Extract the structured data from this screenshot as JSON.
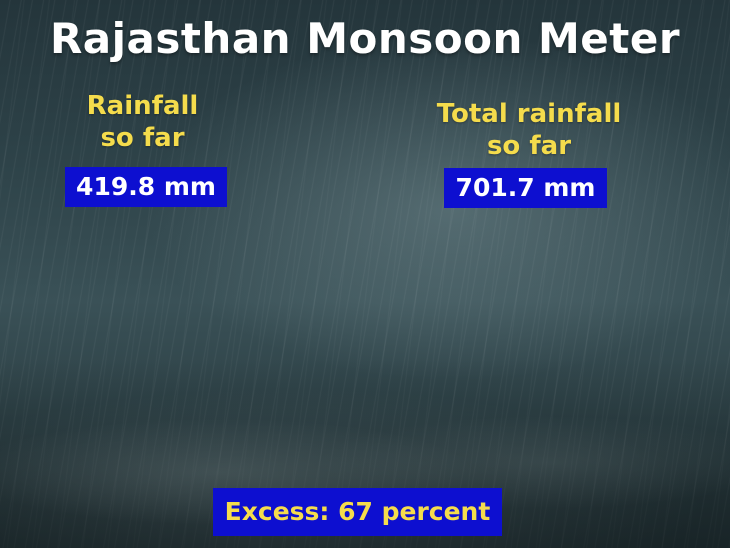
{
  "title": "Rajasthan Monsoon Meter",
  "rainfall_so_far": {
    "label_line1": "Rainfall",
    "label_line2": "so far",
    "value": "419.8 mm"
  },
  "total_rainfall_so_far": {
    "label_line1": "Total rainfall",
    "label_line2": "so far",
    "value": "701.7 mm"
  },
  "excess": "Excess: 67 percent",
  "colors": {
    "label_yellow": "#f5dc4c",
    "box_blue": "#0d0fd0",
    "title_white": "#ffffff"
  }
}
